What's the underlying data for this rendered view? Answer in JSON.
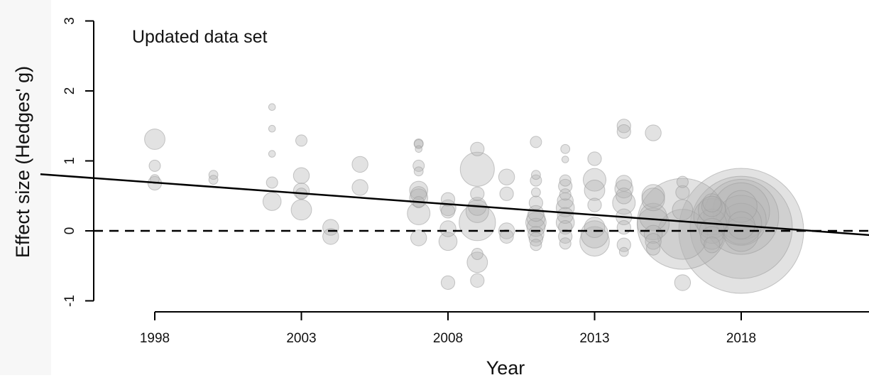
{
  "chart_data": {
    "type": "scatter",
    "title": "Updated data set",
    "xlabel": "Year",
    "ylabel": "Effect size (Hedges' g)",
    "xlim": [
      1994.1,
      2023
    ],
    "ylim": [
      -1,
      3
    ],
    "xticks": [
      "1998",
      "2003",
      "2008",
      "2013",
      "2018"
    ],
    "yticks": [
      "-1",
      "0",
      "1",
      "2",
      "3"
    ],
    "grid": false,
    "legend": "none",
    "marker_color": "#b3b3b3",
    "reference_line": {
      "y": 0,
      "style": "dashed"
    },
    "trend_line": {
      "x": [
        1994.1,
        2023
      ],
      "y": [
        0.81,
        -0.08
      ]
    },
    "points": [
      {
        "x": 1998,
        "y": 1.31,
        "w": 9
      },
      {
        "x": 1998,
        "y": 0.93,
        "w": 5
      },
      {
        "x": 1998,
        "y": 0.68,
        "w": 6
      },
      {
        "x": 1998,
        "y": 0.74,
        "w": 4
      },
      {
        "x": 2000,
        "y": 0.8,
        "w": 4
      },
      {
        "x": 2000,
        "y": 0.73,
        "w": 4
      },
      {
        "x": 2002,
        "y": 1.77,
        "w": 3
      },
      {
        "x": 2002,
        "y": 1.46,
        "w": 3
      },
      {
        "x": 2002,
        "y": 1.1,
        "w": 3
      },
      {
        "x": 2002,
        "y": 0.69,
        "w": 5
      },
      {
        "x": 2002,
        "y": 0.42,
        "w": 8
      },
      {
        "x": 2003,
        "y": 1.29,
        "w": 5
      },
      {
        "x": 2003,
        "y": 0.79,
        "w": 7
      },
      {
        "x": 2003,
        "y": 0.57,
        "w": 7
      },
      {
        "x": 2003,
        "y": 0.53,
        "w": 5
      },
      {
        "x": 2003,
        "y": 0.3,
        "w": 9
      },
      {
        "x": 2004,
        "y": 0.05,
        "w": 7
      },
      {
        "x": 2004,
        "y": -0.08,
        "w": 7
      },
      {
        "x": 2005,
        "y": 0.95,
        "w": 7
      },
      {
        "x": 2005,
        "y": 0.62,
        "w": 7
      },
      {
        "x": 2007,
        "y": 1.25,
        "w": 4
      },
      {
        "x": 2007,
        "y": 1.24,
        "w": 4
      },
      {
        "x": 2007,
        "y": 1.17,
        "w": 3
      },
      {
        "x": 2007,
        "y": 0.93,
        "w": 5
      },
      {
        "x": 2007,
        "y": 0.85,
        "w": 4
      },
      {
        "x": 2007,
        "y": 0.58,
        "w": 8
      },
      {
        "x": 2007,
        "y": 0.52,
        "w": 7
      },
      {
        "x": 2007,
        "y": 0.47,
        "w": 8
      },
      {
        "x": 2007,
        "y": 0.41,
        "w": 5
      },
      {
        "x": 2007,
        "y": 0.25,
        "w": 10
      },
      {
        "x": 2007,
        "y": -0.1,
        "w": 7
      },
      {
        "x": 2008,
        "y": 0.45,
        "w": 6
      },
      {
        "x": 2008,
        "y": 0.33,
        "w": 7
      },
      {
        "x": 2008,
        "y": 0.28,
        "w": 6
      },
      {
        "x": 2008,
        "y": 0.03,
        "w": 7
      },
      {
        "x": 2008,
        "y": -0.15,
        "w": 8
      },
      {
        "x": 2008,
        "y": -0.74,
        "w": 6
      },
      {
        "x": 2009,
        "y": 1.17,
        "w": 6
      },
      {
        "x": 2009,
        "y": 0.88,
        "w": 15
      },
      {
        "x": 2009,
        "y": 0.53,
        "w": 6
      },
      {
        "x": 2009,
        "y": 0.35,
        "w": 8
      },
      {
        "x": 2009,
        "y": 0.28,
        "w": 10
      },
      {
        "x": 2009,
        "y": 0.12,
        "w": 16
      },
      {
        "x": 2009,
        "y": -0.33,
        "w": 5
      },
      {
        "x": 2009,
        "y": -0.45,
        "w": 9
      },
      {
        "x": 2009,
        "y": -0.71,
        "w": 6
      },
      {
        "x": 2010,
        "y": 0.77,
        "w": 7
      },
      {
        "x": 2010,
        "y": 0.53,
        "w": 6
      },
      {
        "x": 2010,
        "y": 0.0,
        "w": 7
      },
      {
        "x": 2010,
        "y": -0.08,
        "w": 6
      },
      {
        "x": 2011,
        "y": 1.27,
        "w": 5
      },
      {
        "x": 2011,
        "y": 0.8,
        "w": 4
      },
      {
        "x": 2011,
        "y": 0.72,
        "w": 5
      },
      {
        "x": 2011,
        "y": 0.55,
        "w": 4
      },
      {
        "x": 2011,
        "y": 0.4,
        "w": 6
      },
      {
        "x": 2011,
        "y": 0.25,
        "w": 7
      },
      {
        "x": 2011,
        "y": 0.18,
        "w": 8
      },
      {
        "x": 2011,
        "y": 0.12,
        "w": 9
      },
      {
        "x": 2011,
        "y": 0.05,
        "w": 8
      },
      {
        "x": 2011,
        "y": -0.05,
        "w": 7
      },
      {
        "x": 2011,
        "y": -0.12,
        "w": 6
      },
      {
        "x": 2011,
        "y": -0.2,
        "w": 5
      },
      {
        "x": 2012,
        "y": 1.17,
        "w": 4
      },
      {
        "x": 2012,
        "y": 1.02,
        "w": 3
      },
      {
        "x": 2012,
        "y": 0.72,
        "w": 5
      },
      {
        "x": 2012,
        "y": 0.64,
        "w": 6
      },
      {
        "x": 2012,
        "y": 0.52,
        "w": 5
      },
      {
        "x": 2012,
        "y": 0.43,
        "w": 7
      },
      {
        "x": 2012,
        "y": 0.33,
        "w": 8
      },
      {
        "x": 2012,
        "y": 0.22,
        "w": 7
      },
      {
        "x": 2012,
        "y": 0.12,
        "w": 8
      },
      {
        "x": 2012,
        "y": 0.05,
        "w": 6
      },
      {
        "x": 2012,
        "y": -0.08,
        "w": 6
      },
      {
        "x": 2012,
        "y": -0.18,
        "w": 5
      },
      {
        "x": 2013,
        "y": 1.03,
        "w": 6
      },
      {
        "x": 2013,
        "y": 0.73,
        "w": 10
      },
      {
        "x": 2013,
        "y": 0.58,
        "w": 9
      },
      {
        "x": 2013,
        "y": 0.37,
        "w": 6
      },
      {
        "x": 2013,
        "y": 0.05,
        "w": 9
      },
      {
        "x": 2013,
        "y": -0.05,
        "w": 12
      },
      {
        "x": 2013,
        "y": -0.15,
        "w": 13
      },
      {
        "x": 2014,
        "y": 1.5,
        "w": 6
      },
      {
        "x": 2014,
        "y": 1.42,
        "w": 6
      },
      {
        "x": 2014,
        "y": 0.68,
        "w": 7
      },
      {
        "x": 2014,
        "y": 0.6,
        "w": 8
      },
      {
        "x": 2014,
        "y": 0.5,
        "w": 7
      },
      {
        "x": 2014,
        "y": 0.4,
        "w": 10
      },
      {
        "x": 2014,
        "y": 0.2,
        "w": 7
      },
      {
        "x": 2014,
        "y": 0.05,
        "w": 6
      },
      {
        "x": 2014,
        "y": -0.2,
        "w": 6
      },
      {
        "x": 2014,
        "y": -0.3,
        "w": 4
      },
      {
        "x": 2015,
        "y": 1.4,
        "w": 7
      },
      {
        "x": 2015,
        "y": 0.5,
        "w": 10
      },
      {
        "x": 2015,
        "y": 0.45,
        "w": 10
      },
      {
        "x": 2015,
        "y": 0.2,
        "w": 12
      },
      {
        "x": 2015,
        "y": 0.1,
        "w": 14
      },
      {
        "x": 2015,
        "y": -0.05,
        "w": 8
      },
      {
        "x": 2015,
        "y": -0.15,
        "w": 7
      },
      {
        "x": 2015,
        "y": -0.25,
        "w": 6
      },
      {
        "x": 2016,
        "y": 0.7,
        "w": 5
      },
      {
        "x": 2016,
        "y": 0.55,
        "w": 6
      },
      {
        "x": 2016,
        "y": 0.3,
        "w": 9
      },
      {
        "x": 2016,
        "y": 0.1,
        "w": 40
      },
      {
        "x": 2016,
        "y": -0.05,
        "w": 22
      },
      {
        "x": 2016,
        "y": -0.74,
        "w": 7
      },
      {
        "x": 2017,
        "y": 0.4,
        "w": 8
      },
      {
        "x": 2017,
        "y": 0.35,
        "w": 9
      },
      {
        "x": 2017,
        "y": 0.3,
        "w": 12
      },
      {
        "x": 2017,
        "y": 0.2,
        "w": 16
      },
      {
        "x": 2017,
        "y": 0.1,
        "w": 13
      },
      {
        "x": 2017,
        "y": 0.0,
        "w": 11
      },
      {
        "x": 2017,
        "y": -0.1,
        "w": 10
      },
      {
        "x": 2017,
        "y": -0.2,
        "w": 7
      },
      {
        "x": 2018,
        "y": 0.35,
        "w": 14
      },
      {
        "x": 2018,
        "y": 0.28,
        "w": 25
      },
      {
        "x": 2018,
        "y": 0.2,
        "w": 33
      },
      {
        "x": 2018,
        "y": 0.15,
        "w": 22
      },
      {
        "x": 2018,
        "y": 0.1,
        "w": 18
      },
      {
        "x": 2018,
        "y": 0.05,
        "w": 45
      },
      {
        "x": 2018,
        "y": 0.0,
        "w": 55
      },
      {
        "x": 2018,
        "y": -0.05,
        "w": 15
      },
      {
        "x": 2018,
        "y": 0.08,
        "w": 12
      }
    ]
  }
}
